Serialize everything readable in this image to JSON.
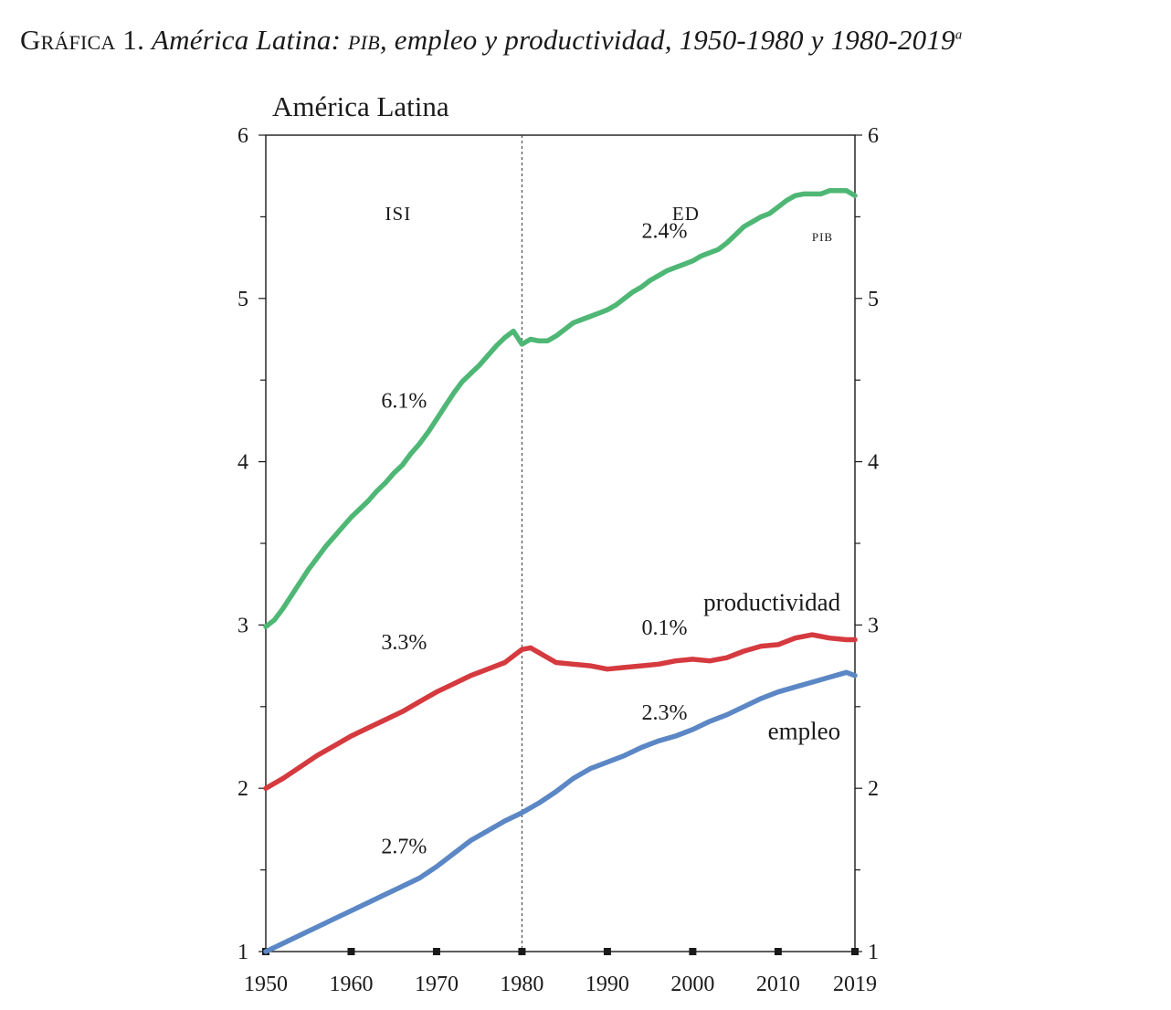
{
  "figure": {
    "label": "Gráfica 1.",
    "title_part1": "América Latina:",
    "title_sc": "pib",
    "title_part2": ", empleo y productividad, 1950-1980 y 1980-2019",
    "title_sup": "a"
  },
  "chart_data": {
    "type": "line",
    "title": "América Latina",
    "xlabel": "",
    "ylabel": "",
    "xlim": [
      1950,
      2019
    ],
    "ylim": [
      1,
      6
    ],
    "x_ticks": [
      1950,
      1960,
      1970,
      1980,
      1990,
      2000,
      2010,
      2019
    ],
    "y_ticks": [
      1,
      2,
      3,
      4,
      5,
      6
    ],
    "grid": false,
    "period_divider": 1980,
    "period_labels": [
      "ISI",
      "ED"
    ],
    "series": [
      {
        "name": "PIB",
        "color": "#4fb775",
        "x": [
          1950,
          1951,
          1952,
          1953,
          1954,
          1955,
          1956,
          1957,
          1958,
          1959,
          1960,
          1961,
          1962,
          1963,
          1964,
          1965,
          1966,
          1967,
          1968,
          1969,
          1970,
          1971,
          1972,
          1973,
          1974,
          1975,
          1976,
          1977,
          1978,
          1979,
          1980,
          1981,
          1982,
          1983,
          1984,
          1985,
          1986,
          1987,
          1988,
          1989,
          1990,
          1991,
          1992,
          1993,
          1994,
          1995,
          1996,
          1997,
          1998,
          1999,
          2000,
          2001,
          2002,
          2003,
          2004,
          2005,
          2006,
          2007,
          2008,
          2009,
          2010,
          2011,
          2012,
          2013,
          2014,
          2015,
          2016,
          2017,
          2018,
          2019
        ],
        "values": [
          2.99,
          3.03,
          3.1,
          3.18,
          3.26,
          3.34,
          3.41,
          3.48,
          3.54,
          3.6,
          3.66,
          3.71,
          3.76,
          3.82,
          3.87,
          3.93,
          3.98,
          4.05,
          4.11,
          4.18,
          4.26,
          4.34,
          4.42,
          4.49,
          4.54,
          4.59,
          4.65,
          4.71,
          4.76,
          4.8,
          4.72,
          4.75,
          4.74,
          4.74,
          4.77,
          4.81,
          4.85,
          4.87,
          4.89,
          4.91,
          4.93,
          4.96,
          5.0,
          5.04,
          5.07,
          5.11,
          5.14,
          5.17,
          5.19,
          5.21,
          5.23,
          5.26,
          5.28,
          5.3,
          5.34,
          5.39,
          5.44,
          5.47,
          5.5,
          5.52,
          5.56,
          5.6,
          5.63,
          5.64,
          5.64,
          5.64,
          5.66,
          5.66,
          5.66,
          5.63
        ],
        "labels": [
          "6.1%",
          "2.4%"
        ]
      },
      {
        "name": "productividad",
        "color": "#d53a3f",
        "x": [
          1950,
          1952,
          1954,
          1956,
          1958,
          1960,
          1962,
          1964,
          1966,
          1968,
          1970,
          1972,
          1974,
          1976,
          1978,
          1980,
          1981,
          1982,
          1984,
          1986,
          1988,
          1990,
          1992,
          1994,
          1996,
          1998,
          2000,
          2002,
          2004,
          2006,
          2008,
          2010,
          2012,
          2014,
          2016,
          2018,
          2019
        ],
        "values": [
          2.0,
          2.06,
          2.13,
          2.2,
          2.26,
          2.32,
          2.37,
          2.42,
          2.47,
          2.53,
          2.59,
          2.64,
          2.69,
          2.73,
          2.77,
          2.85,
          2.86,
          2.83,
          2.77,
          2.76,
          2.75,
          2.73,
          2.74,
          2.75,
          2.76,
          2.78,
          2.79,
          2.78,
          2.8,
          2.84,
          2.87,
          2.88,
          2.92,
          2.94,
          2.92,
          2.91,
          2.91
        ],
        "labels": [
          "3.3%",
          "0.1%"
        ]
      },
      {
        "name": "empleo",
        "color": "#5b87c5",
        "x": [
          1950,
          1952,
          1954,
          1956,
          1958,
          1960,
          1962,
          1964,
          1966,
          1968,
          1970,
          1972,
          1974,
          1976,
          1978,
          1980,
          1982,
          1984,
          1986,
          1988,
          1990,
          1992,
          1994,
          1996,
          1998,
          2000,
          2002,
          2004,
          2006,
          2008,
          2010,
          2012,
          2014,
          2016,
          2018,
          2019
        ],
        "values": [
          1.0,
          1.05,
          1.1,
          1.15,
          1.2,
          1.25,
          1.3,
          1.35,
          1.4,
          1.45,
          1.52,
          1.6,
          1.68,
          1.74,
          1.8,
          1.85,
          1.91,
          1.98,
          2.06,
          2.12,
          2.16,
          2.2,
          2.25,
          2.29,
          2.32,
          2.36,
          2.41,
          2.45,
          2.5,
          2.55,
          2.59,
          2.62,
          2.65,
          2.68,
          2.71,
          2.69
        ],
        "labels": [
          "2.7%",
          "2.3%"
        ]
      }
    ]
  }
}
